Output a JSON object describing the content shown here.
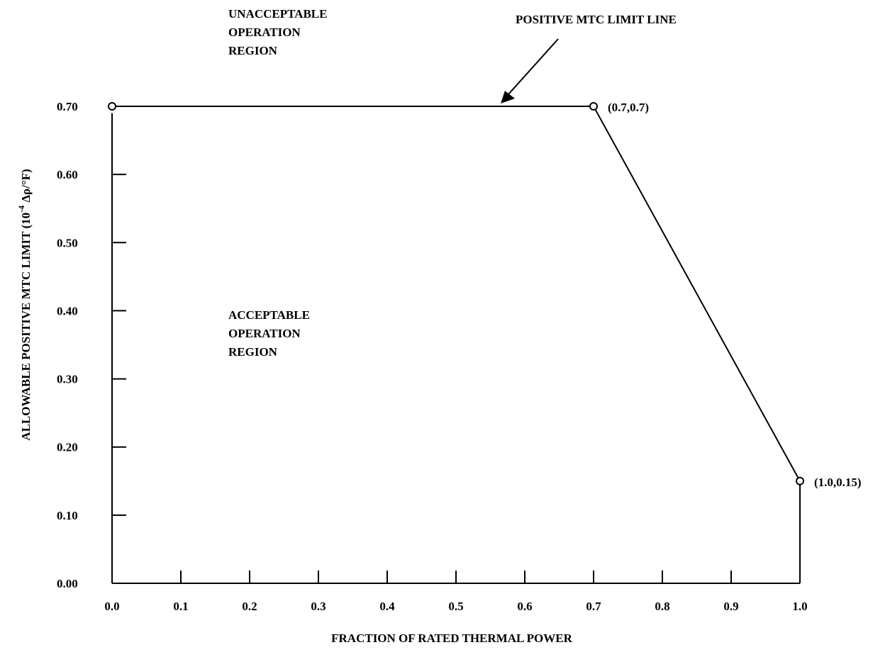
{
  "chart_data": {
    "type": "line",
    "title": "",
    "xlabel": "FRACTION OF RATED THERMAL POWER",
    "ylabel": "ALLOWABLE POSITIVE MTC LIMIT (10",
    "ylabel_superscript": "-4",
    "ylabel_unit": "Δρ/°F)",
    "xlim": [
      0.0,
      1.0
    ],
    "ylim": [
      0.0,
      0.7
    ],
    "grid": false,
    "x_ticks": [
      0.0,
      0.1,
      0.2,
      0.3,
      0.4,
      0.5,
      0.6,
      0.7,
      0.8,
      0.9,
      1.0
    ],
    "x_tick_labels": [
      "0.0",
      "0.1",
      "0.2",
      "0.3",
      "0.4",
      "0.5",
      "0.6",
      "0.7",
      "0.8",
      "0.9",
      "1.0"
    ],
    "y_ticks": [
      0.0,
      0.1,
      0.2,
      0.3,
      0.4,
      0.5,
      0.6,
      0.7
    ],
    "y_tick_labels": [
      "0.00",
      "0.10",
      "0.20",
      "0.30",
      "0.40",
      "0.50",
      "0.60",
      "0.70"
    ],
    "series": [
      {
        "x": [
          0.0,
          0.7,
          1.0
        ],
        "y": [
          0.7,
          0.7,
          0.15
        ]
      }
    ],
    "point_labels": [
      {
        "x": 0.7,
        "y": 0.7,
        "text": "(0.7,0.7)"
      },
      {
        "x": 1.0,
        "y": 0.15,
        "text": "(1.0,0.15)"
      }
    ],
    "annotations": {
      "limit_line_label": "POSITIVE MTC LIMIT LINE",
      "unacceptable_region": [
        "UNACCEPTABLE",
        "OPERATION",
        "REGION"
      ],
      "acceptable_region": [
        "ACCEPTABLE",
        "OPERATION",
        "REGION"
      ]
    }
  }
}
